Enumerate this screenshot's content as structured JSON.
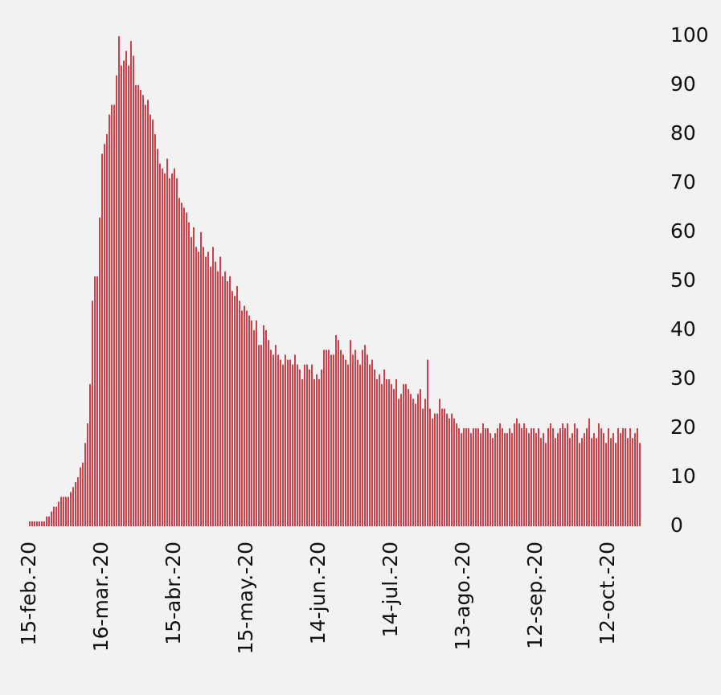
{
  "chart_data": {
    "type": "bar",
    "color": "#c8141e",
    "ylim": [
      0,
      100
    ],
    "yticks": [
      0,
      10,
      20,
      30,
      40,
      50,
      60,
      70,
      80,
      90,
      100
    ],
    "grid": false,
    "categories": [
      "15-feb.-20",
      null,
      null,
      null,
      null,
      null,
      null,
      null,
      null,
      null,
      null,
      null,
      null,
      null,
      null,
      null,
      null,
      null,
      null,
      null,
      null,
      null,
      null,
      null,
      null,
      null,
      null,
      null,
      null,
      null,
      "16-mar.-20",
      null,
      null,
      null,
      null,
      null,
      null,
      null,
      null,
      null,
      null,
      null,
      null,
      null,
      null,
      null,
      null,
      null,
      null,
      null,
      null,
      null,
      null,
      null,
      null,
      null,
      null,
      null,
      null,
      null,
      "15-abr.-20",
      null,
      null,
      null,
      null,
      null,
      null,
      null,
      null,
      null,
      null,
      null,
      null,
      null,
      null,
      null,
      null,
      null,
      null,
      null,
      null,
      null,
      null,
      null,
      null,
      null,
      null,
      null,
      null,
      null,
      "15-may.-20",
      null,
      null,
      null,
      null,
      null,
      null,
      null,
      null,
      null,
      null,
      null,
      null,
      null,
      null,
      null,
      null,
      null,
      null,
      null,
      null,
      null,
      null,
      null,
      null,
      null,
      null,
      null,
      null,
      null,
      "14-jun.-20",
      null,
      null,
      null,
      null,
      null,
      null,
      null,
      null,
      null,
      null,
      null,
      null,
      null,
      null,
      null,
      null,
      null,
      null,
      null,
      null,
      null,
      null,
      null,
      null,
      null,
      null,
      null,
      null,
      null,
      "14-jul.-20",
      null,
      null,
      null,
      null,
      null,
      null,
      null,
      null,
      null,
      null,
      null,
      null,
      null,
      null,
      null,
      null,
      null,
      null,
      null,
      null,
      null,
      null,
      null,
      null,
      null,
      null,
      null,
      null,
      null,
      "13-ago.-20",
      null,
      null,
      null,
      null,
      null,
      null,
      null,
      null,
      null,
      null,
      null,
      null,
      null,
      null,
      null,
      null,
      null,
      null,
      null,
      null,
      null,
      null,
      null,
      null,
      null,
      null,
      null,
      null,
      null,
      "12-sep.-20",
      null,
      null,
      null,
      null,
      null,
      null,
      null,
      null,
      null,
      null,
      null,
      null,
      null,
      null,
      null,
      null,
      null,
      null,
      null,
      null,
      null,
      null,
      null,
      null,
      null,
      null,
      null,
      null,
      null,
      "12-oct.-20",
      null,
      null,
      null,
      null,
      null,
      null,
      null,
      null,
      null,
      null,
      null,
      null,
      null
    ],
    "values": [
      1,
      1,
      1,
      1,
      1,
      1,
      1,
      2,
      2,
      3,
      4,
      4,
      5,
      6,
      6,
      6,
      6,
      7,
      8,
      9,
      10,
      12,
      13,
      17,
      21,
      29,
      46,
      51,
      51,
      63,
      76,
      78,
      80,
      84,
      86,
      86,
      92,
      100,
      94,
      95,
      97,
      94,
      99,
      96,
      90,
      90,
      89,
      88,
      86,
      87,
      84,
      83,
      80,
      77,
      74,
      73,
      72,
      75,
      71,
      72,
      73,
      71,
      67,
      66,
      65,
      64,
      62,
      59,
      61,
      57,
      56,
      60,
      57,
      55,
      56,
      53,
      57,
      54,
      52,
      55,
      51,
      52,
      50,
      51,
      48,
      47,
      49,
      46,
      44,
      45,
      44,
      43,
      42,
      40,
      42,
      37,
      37,
      41,
      40,
      38,
      36,
      35,
      37,
      35,
      34,
      33,
      35,
      34,
      34,
      33,
      35,
      33,
      32,
      30,
      33,
      33,
      32,
      33,
      30,
      31,
      30,
      32,
      36,
      36,
      36,
      35,
      35,
      39,
      38,
      36,
      35,
      34,
      33,
      38,
      35,
      36,
      34,
      33,
      36,
      37,
      35,
      33,
      34,
      32,
      30,
      31,
      29,
      32,
      30,
      30,
      29,
      28,
      30,
      26,
      27,
      29,
      29,
      28,
      27,
      26,
      25,
      27,
      28,
      24,
      26,
      34,
      24,
      22,
      23,
      23,
      26,
      24,
      24,
      23,
      22,
      23,
      22,
      21,
      20,
      19,
      20,
      20,
      20,
      19,
      20,
      20,
      20,
      19,
      21,
      20,
      20,
      19,
      18,
      19,
      20,
      21,
      20,
      19,
      19,
      20,
      19,
      21,
      22,
      21,
      20,
      21,
      20,
      19,
      20,
      20,
      19,
      20,
      18,
      19,
      17,
      20,
      21,
      20,
      18,
      19,
      20,
      21,
      20,
      21,
      18,
      19,
      21,
      20,
      17,
      18,
      19,
      20,
      22,
      18,
      19,
      18,
      21,
      20,
      19,
      17,
      20,
      18,
      19,
      17,
      20,
      19,
      20,
      20,
      18,
      20,
      18,
      19,
      20,
      17
    ]
  }
}
